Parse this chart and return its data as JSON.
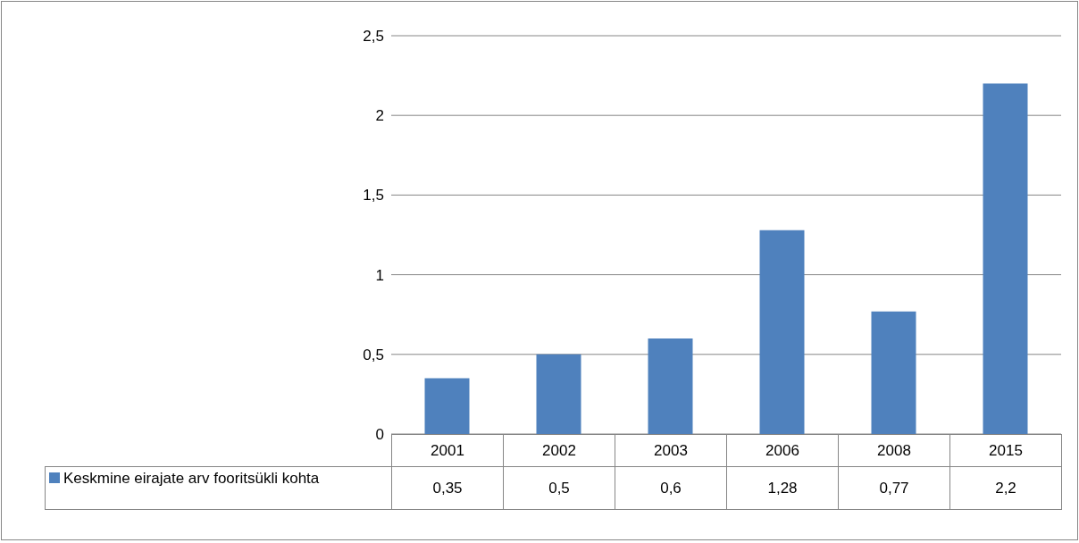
{
  "chart_data": {
    "type": "bar",
    "categories": [
      "2001",
      "2002",
      "2003",
      "2006",
      "2008",
      "2015"
    ],
    "series": [
      {
        "name": "Keskmine eirajate arv fooritsükli kohta",
        "color": "#4f81bd",
        "values": [
          0.35,
          0.5,
          0.6,
          1.28,
          0.77,
          2.2
        ],
        "value_labels": [
          "0,35",
          "0,5",
          "0,6",
          "1,28",
          "0,77",
          "2,2"
        ]
      }
    ],
    "ylim": [
      0,
      2.5
    ],
    "yticks": [
      0,
      {
        "value": 0.5,
        "label": "0,5"
      },
      1,
      {
        "value": 1.5,
        "label": "1,5"
      },
      2,
      {
        "value": 2.5,
        "label": "2,5"
      }
    ],
    "grid": "y",
    "legend": "bottom left"
  }
}
